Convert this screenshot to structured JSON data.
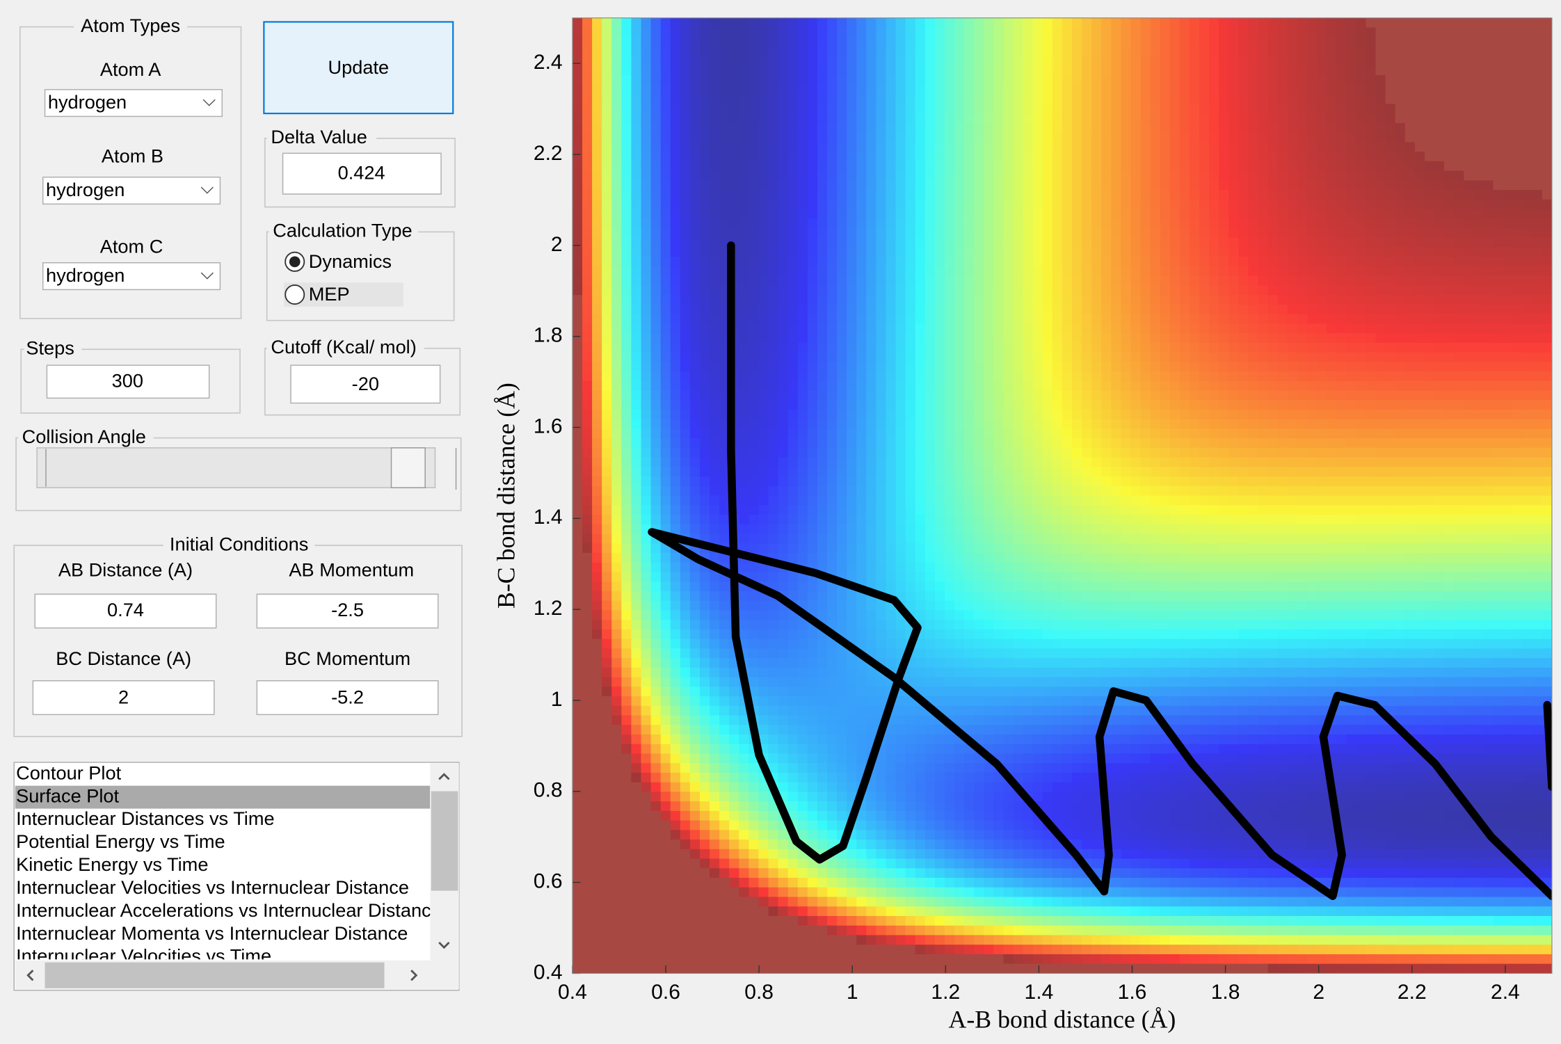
{
  "atom_types": {
    "title": "Atom Types",
    "atoms": [
      {
        "label": "Atom A",
        "value": "hydrogen"
      },
      {
        "label": "Atom B",
        "value": "hydrogen"
      },
      {
        "label": "Atom C",
        "value": "hydrogen"
      }
    ]
  },
  "update_button": "Update",
  "delta_value": {
    "label": "Delta Value",
    "value": "0.424"
  },
  "calculation_type": {
    "title": "Calculation Type",
    "options": [
      "Dynamics",
      "MEP"
    ],
    "selected": 0
  },
  "steps": {
    "label": "Steps",
    "value": "300"
  },
  "cutoff": {
    "label": "Cutoff (Kcal/ mol)",
    "value": "-20"
  },
  "collision_angle": {
    "label": "Collision Angle"
  },
  "initial_conditions": {
    "title": "Initial Conditions",
    "fields": [
      {
        "label": "AB Distance (A)",
        "value": "0.74"
      },
      {
        "label": "AB Momentum",
        "value": "-2.5"
      },
      {
        "label": "BC Distance (A)",
        "value": "2"
      },
      {
        "label": "BC Momentum",
        "value": "-5.2"
      }
    ]
  },
  "plot_list": {
    "items": [
      "Contour Plot",
      "Surface Plot",
      "Internuclear Distances vs Time",
      "Potential Energy vs Time",
      "Kinetic Energy vs Time",
      "Internuclear Velocities vs Internuclear Distance",
      "Internuclear Accelerations vs Internuclear Distanc",
      "Internuclear Momenta vs Internuclear Distance",
      "Internuclear Velocities vs Time"
    ],
    "selected": 1
  },
  "chart_data": {
    "type": "line",
    "xlabel": "A-B bond distance (Å)",
    "ylabel": "B-C bond distance (Å)",
    "xlim": [
      0.4,
      2.5
    ],
    "ylim": [
      0.4,
      2.5
    ],
    "xticks": [
      0.4,
      0.6,
      0.8,
      1,
      1.2,
      1.4,
      1.6,
      1.8,
      2,
      2.2,
      2.4
    ],
    "yticks": [
      0.4,
      0.6,
      0.8,
      1,
      1.2,
      1.4,
      1.6,
      1.8,
      2,
      2.2,
      2.4
    ],
    "series": [
      {
        "color": "#000000",
        "x": [
          0.74,
          0.74,
          0.75,
          0.8,
          0.88,
          0.93,
          0.98,
          1.03,
          1.1,
          1.14,
          1.09,
          0.92,
          0.57,
          0.67,
          0.84,
          1.09,
          1.31,
          1.48,
          1.54,
          1.55,
          1.53,
          1.56,
          1.63,
          1.73,
          1.9,
          2.03,
          2.05,
          2.01,
          2.04,
          2.12,
          2.25,
          2.37,
          2.5,
          null,
          2.49,
          2.5
        ],
        "values": [
          2.0,
          1.55,
          1.14,
          0.88,
          0.69,
          0.65,
          0.68,
          0.83,
          1.05,
          1.16,
          1.22,
          1.28,
          1.37,
          1.31,
          1.23,
          1.05,
          0.86,
          0.66,
          0.58,
          0.66,
          0.92,
          1.02,
          1.0,
          0.86,
          0.66,
          0.57,
          0.66,
          0.92,
          1.01,
          0.99,
          0.86,
          0.7,
          0.57,
          null,
          0.99,
          0.81
        ]
      }
    ]
  }
}
